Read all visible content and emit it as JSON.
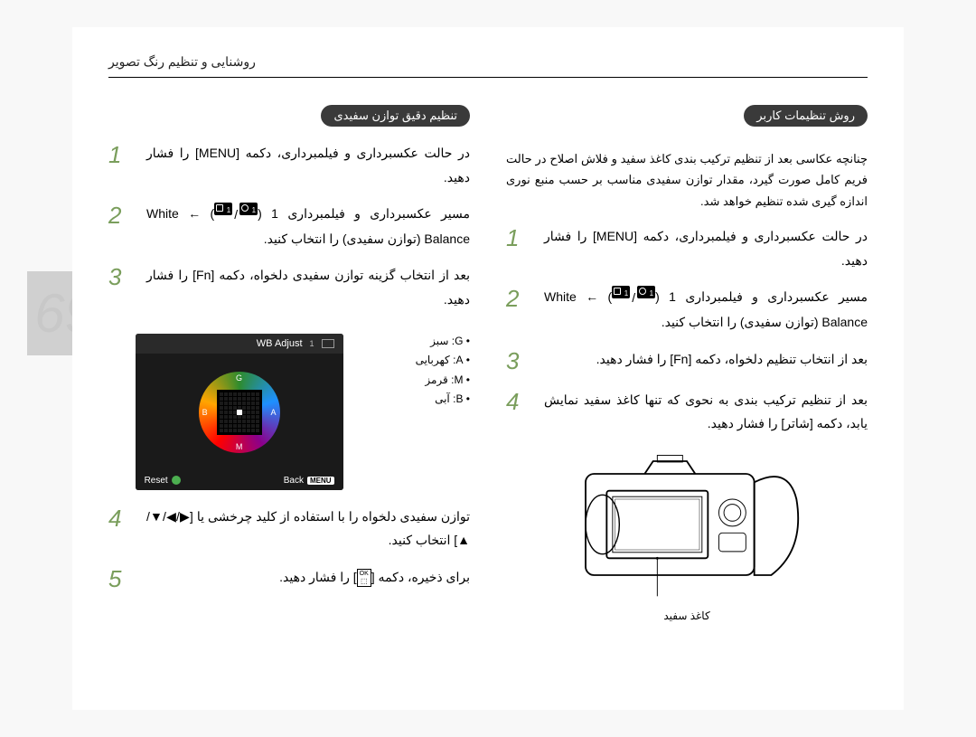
{
  "header": "روشنایی و تنظیم رنگ تصویر",
  "pageNumber": "69",
  "colRight": {
    "title": "تنظیم دقیق توازن سفیدی",
    "steps": [
      {
        "n": "1",
        "text": "در حالت عکسبرداری و فیلمبرداری، دکمه [MENU] را فشار دهید."
      },
      {
        "n": "2",
        "prefix": "مسیر عکسبرداری و فیلمبرداری 1 (",
        "suffix": ") ← White Balance (توازن سفیدی) را انتخاب کنید."
      },
      {
        "n": "3",
        "text": "بعد از انتخاب گزینه توازن سفیدی دلخواه، دکمه [Fn] را فشار دهید."
      },
      {
        "n": "4",
        "text": "توازن سفیدی دلخواه را با استفاده از کلید چرخشی یا [▶/◀/▼/▲] انتخاب کنید."
      },
      {
        "n": "5",
        "prefix": "برای ذخیره، دکمه [",
        "suffix": "] را فشار دهید."
      }
    ],
    "wbAdjust": {
      "title": "WB Adjust",
      "back": "Back",
      "reset": "Reset",
      "menuChip": "MENU",
      "labels": {
        "top": "G",
        "right": "A",
        "bottom": "M",
        "left": "B"
      }
    },
    "legend": [
      {
        "k": "G",
        "v": "سبز"
      },
      {
        "k": "A",
        "v": "کهربایی"
      },
      {
        "k": "M",
        "v": "قرمز"
      },
      {
        "k": "B",
        "v": "آبی"
      }
    ]
  },
  "colLeft": {
    "title": "روش تنظیمات کاربر",
    "note": "چنانچه عکاسی بعد از تنظیم ترکیب بندی کاغذ سفید و فلاش اصلاح در حالت فریم کامل صورت گیرد، مقدار توازن سفیدی مناسب بر حسب منبع نوری اندازه گیری شده تنظیم خواهد شد.",
    "steps": [
      {
        "n": "1",
        "text": "در حالت عکسبرداری و فیلمبرداری، دکمه [MENU] را فشار دهید."
      },
      {
        "n": "2",
        "prefix": "مسیر عکسبرداری و فیلمبرداری 1 (",
        "suffix": ") ← White Balance (توازن سفیدی) را انتخاب کنید."
      },
      {
        "n": "3",
        "text": "بعد از انتخاب تنظیم دلخواه، دکمه [Fn] را فشار دهید."
      },
      {
        "n": "4",
        "text": "بعد از تنظیم ترکیب بندی به نحوی که تنها کاغذ سفید نمایش یابد، دکمه [شاتر] را فشار دهید."
      }
    ],
    "caption": "کاغذ سفید"
  },
  "okLabel": "OK"
}
